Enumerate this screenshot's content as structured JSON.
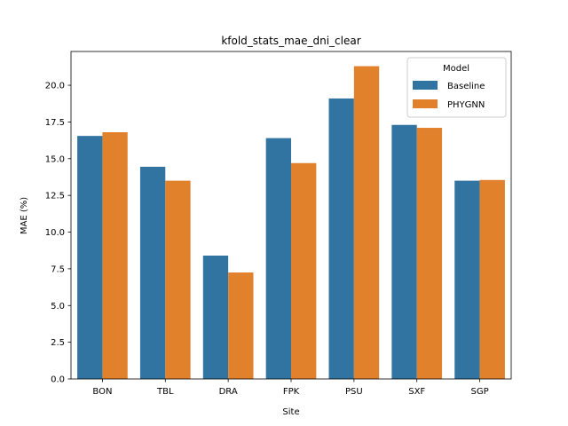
{
  "chart_data": {
    "type": "bar",
    "title": "kfold_stats_mae_dni_clear",
    "xlabel": "Site",
    "ylabel": "MAE (%)",
    "categories": [
      "BON",
      "TBL",
      "DRA",
      "FPK",
      "PSU",
      "SXF",
      "SGP"
    ],
    "series": [
      {
        "name": "Baseline",
        "color": "#3274a1",
        "values": [
          16.55,
          14.45,
          8.4,
          16.4,
          19.1,
          17.3,
          13.5
        ]
      },
      {
        "name": "PHYGNN",
        "color": "#e1812c",
        "values": [
          16.8,
          13.5,
          7.25,
          14.7,
          21.3,
          17.1,
          13.55
        ]
      }
    ],
    "ylim": [
      0,
      22.3
    ],
    "yticks": [
      "0.0",
      "2.5",
      "5.0",
      "7.5",
      "10.0",
      "12.5",
      "15.0",
      "17.5",
      "20.0"
    ],
    "legend": {
      "title": "Model",
      "placement": "top-right"
    },
    "grid": false
  }
}
